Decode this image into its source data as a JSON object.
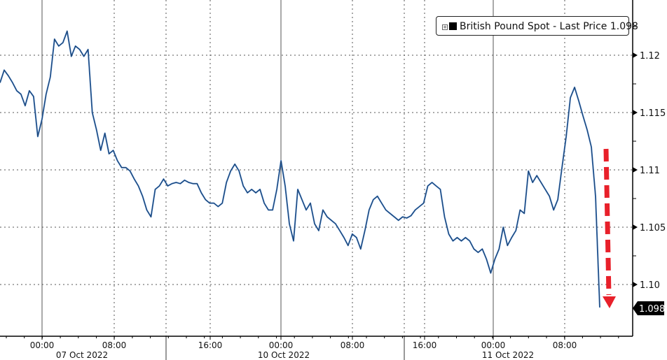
{
  "chart_data": {
    "type": "line",
    "title": "",
    "legend": {
      "label": "British Pound Spot - Last Price",
      "last_value": "1.098",
      "position": "top-right"
    },
    "last_price_label": "1.098",
    "x_tick_labels": [
      "00:00",
      "08:00",
      "16:00",
      "00:00",
      "08:00",
      "16:00",
      "00:00",
      "08:00"
    ],
    "x_date_labels": [
      "07 Oct 2022",
      "10 Oct 2022",
      "11 Oct 2022"
    ],
    "y_tick_labels": [
      "1.12",
      "1.115",
      "1.11",
      "1.105",
      "1.10"
    ],
    "y_ticks": [
      1.12,
      1.115,
      1.11,
      1.105,
      1.1
    ],
    "ylim": [
      1.0955,
      1.1248
    ],
    "grid": true,
    "y_axis_side": "right",
    "series": [
      {
        "color": "#3a78c2",
        "values": [
          1.1176,
          1.1187,
          1.1182,
          1.1176,
          1.1169,
          1.1166,
          1.1156,
          1.1169,
          1.1164,
          1.1129,
          1.1144,
          1.1166,
          1.1181,
          1.1214,
          1.1208,
          1.1211,
          1.1221,
          1.1199,
          1.1208,
          1.1205,
          1.1199,
          1.1205,
          1.115,
          1.1135,
          1.1117,
          1.1132,
          1.1114,
          1.1117,
          1.1108,
          1.1102,
          1.1102,
          1.1099,
          1.1092,
          1.1086,
          1.1077,
          1.1065,
          1.1059,
          1.1083,
          1.1086,
          1.1092,
          1.1086,
          1.1088,
          1.1089,
          1.1088,
          1.1091,
          1.1089,
          1.1088,
          1.1088,
          1.108,
          1.1074,
          1.1071,
          1.1071,
          1.1068,
          1.1071,
          1.1089,
          1.1099,
          1.1105,
          1.1099,
          1.1086,
          1.108,
          1.1083,
          1.108,
          1.1083,
          1.1071,
          1.1065,
          1.1065,
          1.1083,
          1.1108,
          1.1086,
          1.1053,
          1.1038,
          1.1083,
          1.1074,
          1.1065,
          1.1071,
          1.1053,
          1.1047,
          1.1065,
          1.1059,
          1.1056,
          1.1053,
          1.1047,
          1.1041,
          1.1034,
          1.1044,
          1.1041,
          1.1031,
          1.1047,
          1.1065,
          1.1074,
          1.1077,
          1.1071,
          1.1065,
          1.1062,
          1.1059,
          1.1056,
          1.1059,
          1.1058,
          1.106,
          1.1065,
          1.1068,
          1.1071,
          1.1086,
          1.1089,
          1.1086,
          1.1083,
          1.1059,
          1.1044,
          1.1038,
          1.1041,
          1.1038,
          1.1041,
          1.1038,
          1.1031,
          1.1028,
          1.1031,
          1.1022,
          1.101,
          1.1022,
          1.1031,
          1.105,
          1.1034,
          1.1041,
          1.1047,
          1.1065,
          1.1062,
          1.1099,
          1.1089,
          1.1095,
          1.1089,
          1.1083,
          1.1077,
          1.1065,
          1.1074,
          1.1102,
          1.1129,
          1.1163,
          1.1172,
          1.116,
          1.1147,
          1.1135,
          1.112,
          1.1077,
          1.098
        ]
      }
    ],
    "annotation": {
      "type": "arrow",
      "direction": "down",
      "color": "#e8202a",
      "style": "dashed"
    }
  }
}
